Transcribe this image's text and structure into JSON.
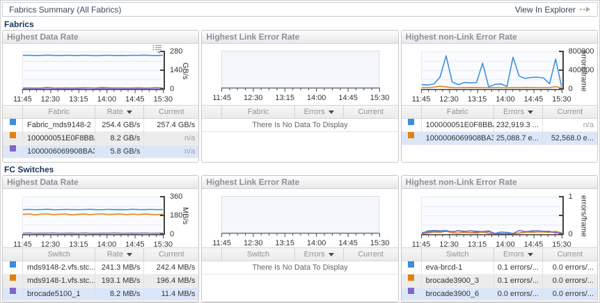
{
  "header": {
    "title": "Fabrics Summary (All Fabrics)",
    "action_label": "View In Explorer"
  },
  "sections": [
    {
      "label": "Fabrics",
      "panels": [
        {
          "title": "Highest Data Rate",
          "chart": {
            "type": "line",
            "unit": "GB/s",
            "ylim": [
              0,
              280
            ],
            "yticks": [
              "280",
              "140",
              "0"
            ],
            "menu_icon": true,
            "x_labels": [
              "11:45",
              "12:30",
              "13:15",
              "14:00",
              "14:45",
              "15:30"
            ],
            "series": [
              {
                "name": "Fabric_mds9148-2",
                "color": "#3b8ede",
                "values": [
                  255,
                  256,
                  254,
                  255,
                  257,
                  255,
                  254,
                  256,
                  255,
                  254,
                  256,
                  255,
                  253,
                  255,
                  256,
                  254,
                  255,
                  254,
                  256,
                  255,
                  257,
                  255,
                  254,
                  256
                ]
              },
              {
                "name": "100000051E0F8BBA",
                "color": "#e2820f",
                "values": [
                  7,
                  8,
                  6,
                  8,
                  12,
                  8,
                  7,
                  8,
                  7,
                  8,
                  9,
                  7,
                  8,
                  12,
                  9,
                  8,
                  8,
                  7,
                  8,
                  9,
                  7,
                  8,
                  10,
                  8
                ]
              },
              {
                "name": "1000006069908BA3",
                "color": "#8465c8",
                "values": [
                  5,
                  5,
                  6,
                  5,
                  7,
                  5,
                  5,
                  6,
                  5,
                  5,
                  6,
                  7,
                  5,
                  5,
                  6,
                  5,
                  6,
                  5,
                  5,
                  6,
                  5,
                  6,
                  7,
                  5
                ]
              }
            ]
          },
          "table": {
            "columns": [
              "Fabric",
              "Rate",
              "Current"
            ],
            "sort_column": 1,
            "rows": [
              {
                "swatch": "#3b8ede",
                "name": "Fabric_mds9148-2",
                "value": "254.4 GB/s",
                "current": "257.4 GB/s",
                "bg": "white"
              },
              {
                "swatch": "#e2820f",
                "name": "100000051E0F8BBA",
                "value": "8.2 GB/s",
                "current": "n/a",
                "bg": "alt"
              },
              {
                "swatch": "#8465c8",
                "name": "1000006069908BA3",
                "value": "5.8 GB/s",
                "current": "n/a",
                "bg": "highlight"
              }
            ]
          }
        },
        {
          "title": "Highest Link Error Rate",
          "chart": {
            "type": "line",
            "empty": true,
            "x_labels": [
              "11:45",
              "12:30",
              "13:15",
              "14:00",
              "14:45",
              "15:30"
            ]
          },
          "table": {
            "columns": [
              "Fabric",
              "Errors",
              "Current"
            ],
            "sort_column": 1,
            "no_data": "There Is No Data To Display"
          }
        },
        {
          "title": "Highest non-Link Error Rate",
          "chart": {
            "type": "line",
            "unit": "errors/frame",
            "ylim": [
              0,
              800000
            ],
            "yticks": [
              "800000",
              "400000",
              "0"
            ],
            "x_labels": [
              "11:45",
              "12:30",
              "13:15",
              "14:00",
              "14:45",
              "15:30"
            ],
            "series": [
              {
                "name": "100000051E0F8BBA",
                "color": "#3b8ede",
                "values": [
                  95000,
                  85000,
                  110000,
                  260000,
                  720000,
                  150000,
                  95000,
                  140000,
                  130000,
                  140000,
                  560000,
                  45000,
                  100000,
                  110000,
                  55000,
                  690000,
                  280000,
                  230000,
                  250000,
                  255000,
                  240000,
                  110000,
                  650000,
                  35000
                ]
              },
              {
                "name": "1000006069908BA3",
                "color": "#e2820f",
                "values": [
                  30000,
                  28000,
                  40000,
                  60000,
                  45000,
                  30000,
                  28000,
                  30000,
                  32000,
                  30000,
                  28000,
                  26000,
                  30000,
                  28000,
                  26000,
                  30000,
                  28000,
                  32000,
                  30000,
                  28000,
                  26000,
                  30000,
                  50000,
                  20000
                ]
              }
            ]
          },
          "table": {
            "columns": [
              "Fabric",
              "Errors",
              "Current"
            ],
            "sort_column": 1,
            "rows": [
              {
                "swatch": "#3b8ede",
                "name": "100000051E0F8BBA",
                "value": "232,919.3 ...",
                "current": "n/a",
                "bg": "white"
              },
              {
                "swatch": "#e2820f",
                "name": "1000006069908BA3",
                "value": "25,088.7 e...",
                "current": "52,568.0 e...",
                "bg": "highlight"
              }
            ]
          }
        }
      ]
    },
    {
      "label": "FC Switches",
      "panels": [
        {
          "title": "Highest Data Rate",
          "chart": {
            "type": "line",
            "unit": "MB/s",
            "ylim": [
              0,
              360
            ],
            "yticks": [
              "360",
              "180",
              "0"
            ],
            "x_labels": [
              "11:45",
              "12:30",
              "13:15",
              "14:00",
              "14:45",
              "15:30"
            ],
            "series": [
              {
                "name": "mds9148-2.vfs.stc...",
                "color": "#3b8ede",
                "values": [
                  240,
                  242,
                  239,
                  241,
                  243,
                  240,
                  239,
                  242,
                  241,
                  239,
                  241,
                  243,
                  240,
                  239,
                  242,
                  240,
                  241,
                  239,
                  243,
                  241,
                  240,
                  242,
                  240,
                  241
                ]
              },
              {
                "name": "mds9148-1.vfs.stc...",
                "color": "#e2820f",
                "values": [
                  194,
                  198,
                  190,
                  196,
                  199,
                  192,
                  195,
                  198,
                  191,
                  194,
                  197,
                  192,
                  196,
                  199,
                  193,
                  195,
                  198,
                  192,
                  196,
                  193,
                  197,
                  194,
                  192,
                  196
                ]
              },
              {
                "name": "brocade5100_1",
                "color": "#8465c8",
                "values": [
                  10,
                  12,
                  9,
                  11,
                  10,
                  12,
                  9,
                  10,
                  11,
                  9,
                  12,
                  10,
                  9,
                  11,
                  10,
                  12,
                  10,
                  9,
                  11,
                  10,
                  12,
                  9,
                  10,
                  11
                ]
              }
            ]
          },
          "table": {
            "columns": [
              "Switch",
              "Rate",
              "Current"
            ],
            "sort_column": 1,
            "rows": [
              {
                "swatch": "#3b8ede",
                "name": "mds9148-2.vfs.stc...",
                "value": "241.3 MB/s",
                "current": "242.4 MB/s",
                "bg": "white"
              },
              {
                "swatch": "#e2820f",
                "name": "mds9148-1.vfs.stc...",
                "value": "193.1 MB/s",
                "current": "196.4 MB/s",
                "bg": "alt"
              },
              {
                "swatch": "#8465c8",
                "name": "brocade5100_1",
                "value": "8.2 MB/s",
                "current": "11.4 MB/s",
                "bg": "highlight"
              }
            ]
          }
        },
        {
          "title": "Highest Link Error Rate",
          "chart": {
            "type": "line",
            "empty": true,
            "x_labels": [
              "11:45",
              "12:30",
              "13:15",
              "14:00",
              "14:45",
              "15:30"
            ]
          },
          "table": {
            "columns": [
              "Switch",
              "Errors",
              "Current"
            ],
            "sort_column": 1,
            "no_data": "There Is No Data To Display"
          }
        },
        {
          "title": "Highest non-Link Error Rate",
          "chart": {
            "type": "line",
            "unit": "errors/frame",
            "ylim": [
              0,
              1
            ],
            "yticks": [
              "1",
              "",
              "0"
            ],
            "x_labels": [
              "11:45",
              "12:30",
              "13:15",
              "14:00",
              "14:45",
              "15:30"
            ],
            "series": [
              {
                "name": "eva-brcd-1",
                "color": "#3b8ede",
                "values": [
                  0.02,
                  0.09,
                  0.1,
                  0.09,
                  0.1,
                  0.06,
                  0.1,
                  0.05,
                  0.04,
                  0.06,
                  0.05,
                  0.07,
                  0.02,
                  0.06,
                  0.05,
                  0.02,
                  0.03,
                  0.05,
                  0.09,
                  0.09,
                  0.08,
                  0.08,
                  0.03,
                  0.05
                ]
              },
              {
                "name": "brocade3900_3",
                "color": "#e2820f",
                "values": [
                  0.01,
                  0.03,
                  0.06,
                  0.05,
                  0.08,
                  0.04,
                  0.03,
                  0.05,
                  0.04,
                  0.03,
                  0.06,
                  0.02,
                  0.01,
                  0.02,
                  0.01,
                  0.01,
                  0.03,
                  0.06,
                  0.05,
                  0.06,
                  0.06,
                  0.05,
                  0.08,
                  0.03
                ]
              },
              {
                "name": "brocade3900_6",
                "color": "#8465c8",
                "values": [
                  0.04,
                  0.06,
                  0.08,
                  0.07,
                  0.08,
                  0.07,
                  0.09,
                  0.08,
                  0.09,
                  0.08,
                  0.07,
                  0.09,
                  0.02,
                  0.01,
                  0.02,
                  0.02,
                  0.1,
                  0.07,
                  0.08,
                  0.09,
                  0.08,
                  0.07,
                  0.04,
                  0.02
                ]
              }
            ]
          },
          "table": {
            "columns": [
              "Switch",
              "Errors",
              "Current"
            ],
            "sort_column": 1,
            "rows": [
              {
                "swatch": "#3b8ede",
                "name": "eva-brcd-1",
                "value": "0.1 errors/...",
                "current": "0.0 errors/...",
                "bg": "white"
              },
              {
                "swatch": "#e2820f",
                "name": "brocade3900_3",
                "value": "0.1 errors/...",
                "current": "0.0 errors/...",
                "bg": "alt"
              },
              {
                "swatch": "#8465c8",
                "name": "brocade3900_6",
                "value": "0.0 errors/...",
                "current": "0.0 errors/...",
                "bg": "highlight"
              }
            ]
          }
        }
      ]
    }
  ]
}
